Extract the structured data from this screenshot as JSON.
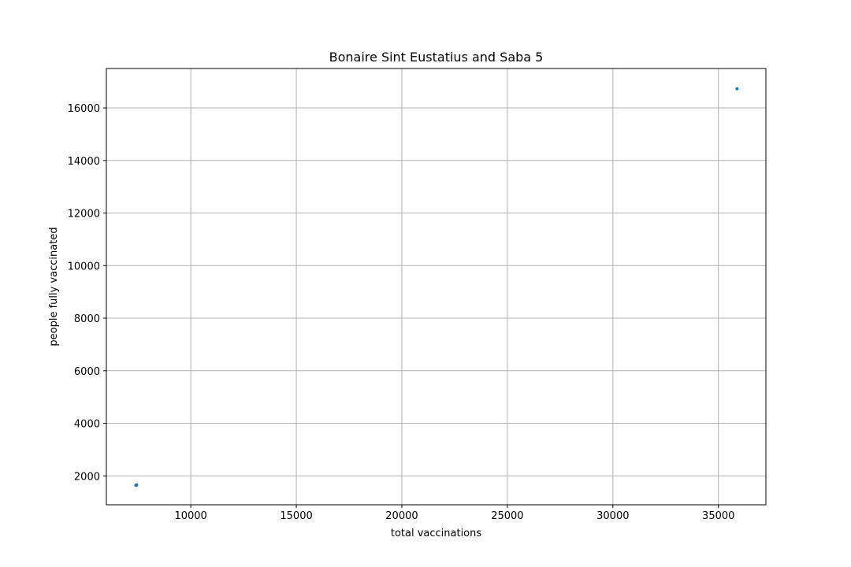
{
  "chart_data": {
    "type": "scatter",
    "title": "Bonaire Sint Eustatius and Saba 5",
    "xlabel": "total vaccinations",
    "ylabel": "people fully vaccinated",
    "xlim": [
      6000,
      37250
    ],
    "ylim": [
      900,
      17500
    ],
    "xticks": [
      10000,
      15000,
      20000,
      25000,
      30000,
      35000
    ],
    "yticks": [
      2000,
      4000,
      6000,
      8000,
      10000,
      12000,
      14000,
      16000
    ],
    "grid": true,
    "color": "#1f77b4",
    "series": [
      {
        "points": [
          {
            "x": 7400,
            "y": 1640
          },
          {
            "x": 7410,
            "y": 1645
          },
          {
            "x": 7420,
            "y": 1650
          },
          {
            "x": 7430,
            "y": 1655
          },
          {
            "x": 35880,
            "y": 16730
          }
        ]
      }
    ]
  }
}
